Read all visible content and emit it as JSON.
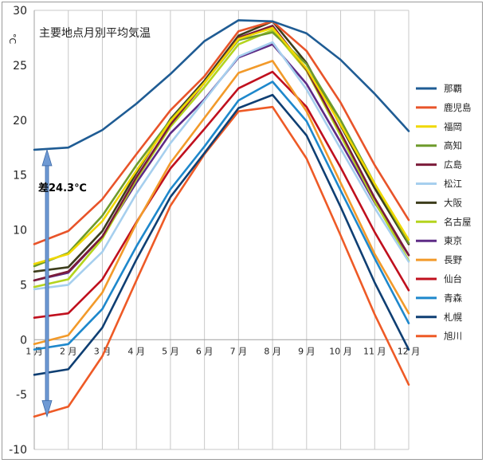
{
  "chart_data": {
    "type": "line",
    "title": "主要地点月別平均気温",
    "ylabel": "°C",
    "ylim": [
      -10,
      30
    ],
    "yticks": [
      "-10",
      "-5",
      "0",
      "5",
      "10",
      "15",
      "20",
      "25",
      "30"
    ],
    "categories": [
      "1 月",
      "2 月",
      "3 月",
      "4 月",
      "5 月",
      "6 月",
      "7 月",
      "8 月",
      "9 月",
      "10 月",
      "11 月",
      "12 月"
    ],
    "grid": "vertical",
    "legend": "right",
    "annotation": {
      "text": "差24.3℃",
      "from": -7.0,
      "to": 17.3
    },
    "series": [
      {
        "name": "那覇",
        "color": "#1f5c94",
        "values": [
          17.3,
          17.5,
          19.1,
          21.5,
          24.2,
          27.2,
          29.1,
          29.0,
          27.9,
          25.5,
          22.4,
          19.0
        ]
      },
      {
        "name": "鹿児島",
        "color": "#e8542a",
        "values": [
          8.7,
          9.9,
          12.8,
          16.9,
          20.9,
          24.0,
          28.1,
          29.0,
          26.3,
          21.6,
          15.9,
          10.9
        ]
      },
      {
        "name": "福岡",
        "color": "#f0d800",
        "values": [
          6.9,
          7.8,
          10.8,
          15.4,
          19.9,
          23.4,
          27.4,
          28.4,
          24.7,
          19.6,
          14.2,
          9.1
        ]
      },
      {
        "name": "高知",
        "color": "#6e9b2c",
        "values": [
          6.7,
          7.9,
          11.3,
          15.9,
          20.0,
          23.4,
          27.3,
          28.0,
          25.1,
          20.0,
          14.2,
          8.8
        ]
      },
      {
        "name": "広島",
        "color": "#7b1b3a",
        "values": [
          5.4,
          6.2,
          9.4,
          14.8,
          19.6,
          23.4,
          27.5,
          28.6,
          24.6,
          18.9,
          12.9,
          7.7
        ]
      },
      {
        "name": "松江",
        "color": "#a6cfee",
        "values": [
          4.6,
          5.0,
          8.0,
          13.3,
          17.9,
          21.8,
          25.8,
          27.1,
          22.8,
          17.4,
          12.0,
          7.1
        ]
      },
      {
        "name": "大阪",
        "color": "#3d3d1c",
        "values": [
          6.2,
          6.6,
          9.9,
          15.2,
          20.1,
          23.6,
          27.7,
          29.0,
          25.2,
          19.5,
          13.8,
          8.7
        ]
      },
      {
        "name": "名古屋",
        "color": "#b4d41e",
        "values": [
          4.8,
          5.5,
          9.2,
          14.6,
          19.4,
          23.0,
          26.9,
          28.2,
          24.5,
          18.6,
          12.6,
          7.2
        ]
      },
      {
        "name": "東京",
        "color": "#5e2b86",
        "values": [
          5.4,
          6.1,
          9.4,
          14.3,
          18.8,
          21.9,
          25.7,
          26.9,
          23.3,
          18.0,
          12.5,
          7.7
        ]
      },
      {
        "name": "長野",
        "color": "#f29a2a",
        "values": [
          -0.4,
          0.4,
          4.3,
          10.6,
          16.1,
          20.2,
          24.3,
          25.4,
          20.8,
          14.3,
          7.8,
          2.4
        ]
      },
      {
        "name": "仙台",
        "color": "#c0101e",
        "values": [
          2.0,
          2.4,
          5.5,
          10.7,
          15.6,
          19.2,
          22.9,
          24.4,
          21.2,
          15.7,
          9.8,
          4.5
        ]
      },
      {
        "name": "青森",
        "color": "#1e88cc",
        "values": [
          -0.9,
          -0.4,
          2.8,
          8.5,
          13.7,
          17.6,
          21.8,
          23.5,
          19.9,
          13.6,
          7.4,
          1.5
        ]
      },
      {
        "name": "札幌",
        "color": "#0f3f73",
        "values": [
          -3.2,
          -2.7,
          1.1,
          7.3,
          13.0,
          17.0,
          21.1,
          22.3,
          18.6,
          12.1,
          5.2,
          -0.9
        ]
      },
      {
        "name": "旭川",
        "color": "#ee5a26",
        "values": [
          -7.0,
          -6.1,
          -1.5,
          5.4,
          12.2,
          16.9,
          20.8,
          21.2,
          16.5,
          9.5,
          2.3,
          -4.1
        ]
      }
    ]
  }
}
